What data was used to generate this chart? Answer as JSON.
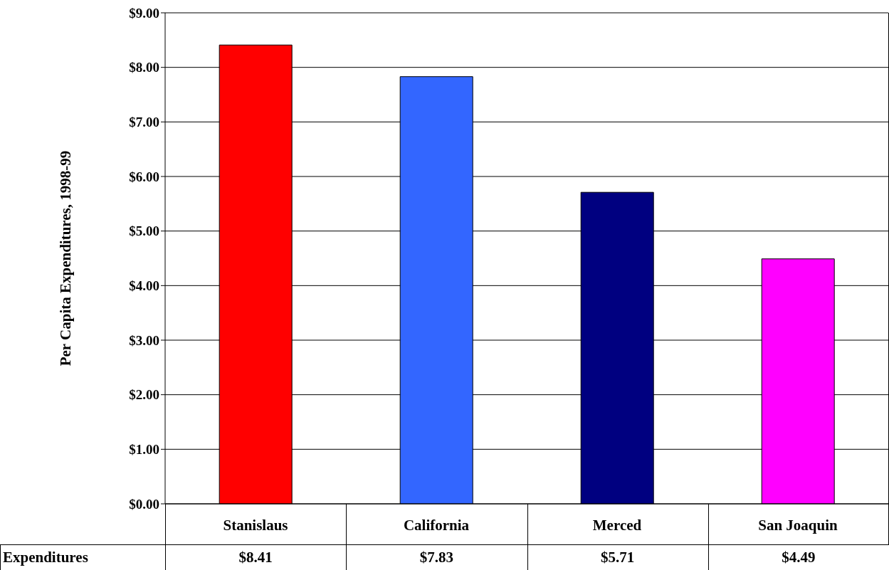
{
  "chart_data": {
    "type": "bar",
    "ylabel": "Per Capita Expenditures, 1998-99",
    "categories": [
      "Stanislaus",
      "California",
      "Merced",
      "San Joaquin"
    ],
    "series": [
      {
        "name": "Expenditures",
        "values": [
          8.41,
          7.83,
          5.71,
          4.49
        ],
        "colors": [
          "#ff0000",
          "#3366ff",
          "#000080",
          "#ff00ff"
        ],
        "value_labels": [
          "$8.41",
          "$7.83",
          "$5.71",
          "$4.49"
        ]
      }
    ],
    "ylim": [
      0,
      9
    ],
    "yticks": [
      {
        "value": 0,
        "label": "$0.00"
      },
      {
        "value": 1,
        "label": "$1.00"
      },
      {
        "value": 2,
        "label": "$2.00"
      },
      {
        "value": 3,
        "label": "$3.00"
      },
      {
        "value": 4,
        "label": "$4.00"
      },
      {
        "value": 5,
        "label": "$5.00"
      },
      {
        "value": 6,
        "label": "$6.00"
      },
      {
        "value": 7,
        "label": "$7.00"
      },
      {
        "value": 8,
        "label": "$8.00"
      },
      {
        "value": 9,
        "label": "$9.00"
      }
    ],
    "grid": "y"
  }
}
